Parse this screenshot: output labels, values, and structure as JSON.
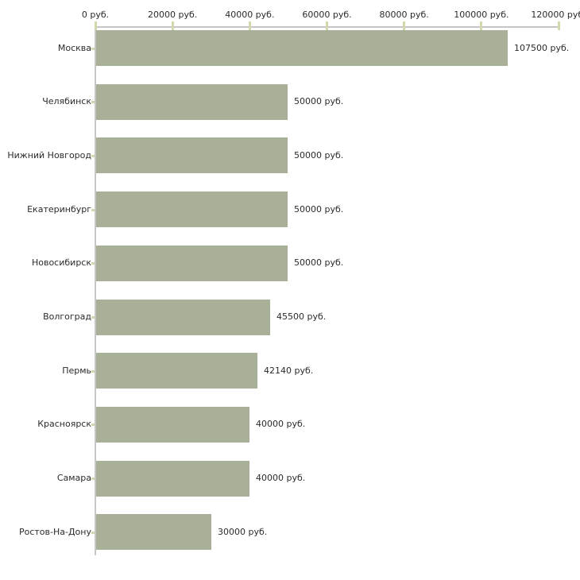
{
  "chart_data": {
    "type": "bar",
    "orientation": "horizontal",
    "title": "",
    "unit": "руб.",
    "categories": [
      "Москва",
      "Челябинск",
      "Нижний Новгород",
      "Екатеринбург",
      "Новосибирск",
      "Волгоград",
      "Пермь",
      "Красноярск",
      "Самара",
      "Ростов-На-Дону"
    ],
    "values": [
      107500,
      50000,
      50000,
      50000,
      50000,
      45500,
      42140,
      40000,
      40000,
      30000
    ],
    "value_labels": [
      "107500 руб.",
      "50000 руб.",
      "50000 руб.",
      "50000 руб.",
      "50000 руб.",
      "45500 руб.",
      "42140 руб.",
      "40000 руб.",
      "40000 руб.",
      "30000 руб."
    ],
    "x_axis": {
      "position": "top",
      "min": 0,
      "max": 120000,
      "tick_interval": 20000,
      "tick_values": [
        0,
        20000,
        40000,
        60000,
        80000,
        100000,
        120000
      ],
      "tick_labels": [
        "0 руб.",
        "20000 руб.",
        "40000 руб.",
        "60000 руб.",
        "80000 руб.",
        "100000 руб.",
        "120000 руб."
      ]
    },
    "grid": false,
    "legend": false,
    "colors": {
      "bar": "#a9b098",
      "axis_line": "#c6c6c6",
      "tick_mark": "#d4d6ac",
      "text": "#2b2b2b",
      "background": "#ffffff"
    }
  }
}
